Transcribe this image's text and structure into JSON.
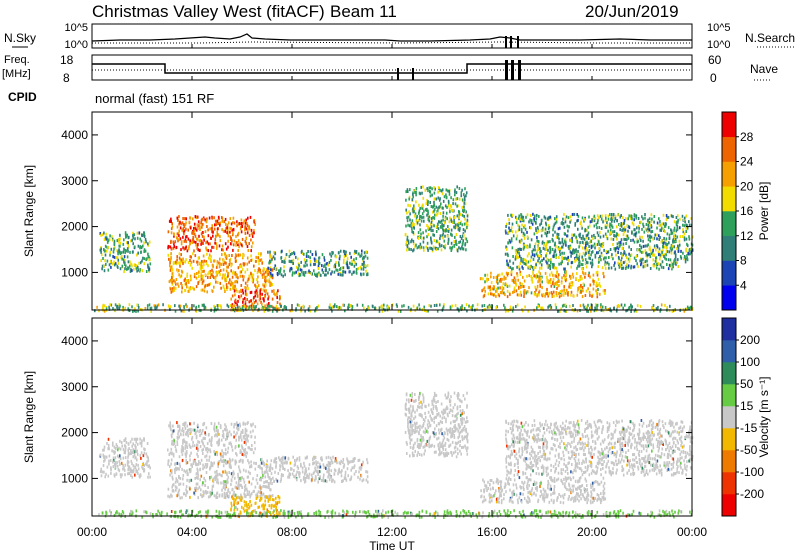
{
  "header": {
    "station": "Christmas Valley West (fitACF)",
    "beam": "Beam 11",
    "date": "20/Jun/2019"
  },
  "summary_panel": {
    "nsky_label": "N.Sky",
    "nsearch_label": "N.Search",
    "left_ticks": [
      "10^5",
      "10^0"
    ],
    "right_ticks": [
      "10^5",
      "10^0"
    ],
    "freq_label": "Freq.",
    "freq_unit": "[MHz]",
    "freq_ticks": [
      "18",
      "8"
    ],
    "nave_label": "Nave",
    "nave_ticks": [
      "60",
      "0"
    ],
    "cpid_label": "CPID",
    "cpid_value": "normal (fast) 151 RF"
  },
  "chart_data": [
    {
      "type": "heatmap",
      "panel": "power",
      "ylabel": "Slant Range [km]",
      "xlabel": "Time UT",
      "ylim": [
        180,
        4500
      ],
      "y_ticks": [
        "1000",
        "2000",
        "3000",
        "4000"
      ],
      "xlim": [
        "00:00",
        "24:00"
      ],
      "x_ticks": [
        "00:00",
        "04:00",
        "08:00",
        "12:00",
        "16:00",
        "20:00",
        "00:00"
      ],
      "colorbar": {
        "label": "Power [dB]",
        "ticks": [
          "4",
          "8",
          "12",
          "16",
          "20",
          "24",
          "28"
        ],
        "colors": [
          "#0000ee",
          "#1c44b4",
          "#2f7f78",
          "#2ea05c",
          "#f2dc00",
          "#f5a000",
          "#ee6400",
          "#ee0000"
        ]
      },
      "regions": [
        {
          "t0": 0.3,
          "t1": 2.3,
          "r0": 1050,
          "r1": 1900,
          "level": 13
        },
        {
          "t0": 3.0,
          "t1": 6.5,
          "r0": 1500,
          "r1": 2250,
          "level": 26
        },
        {
          "t0": 3.0,
          "t1": 7.2,
          "r0": 600,
          "r1": 1450,
          "level": 22
        },
        {
          "t0": 5.5,
          "t1": 7.5,
          "r0": 200,
          "r1": 650,
          "level": 27
        },
        {
          "t0": 7.0,
          "t1": 11.0,
          "r0": 950,
          "r1": 1500,
          "level": 12
        },
        {
          "t0": 12.5,
          "t1": 15.0,
          "r0": 1500,
          "r1": 2900,
          "level": 14
        },
        {
          "t0": 15.5,
          "t1": 20.5,
          "r0": 500,
          "r1": 1050,
          "level": 21
        },
        {
          "t0": 16.5,
          "t1": 24.0,
          "r0": 1100,
          "r1": 2300,
          "level": 13
        },
        {
          "t0": 0.0,
          "t1": 24.0,
          "r0": 180,
          "r1": 330,
          "level": 15
        }
      ]
    },
    {
      "type": "heatmap",
      "panel": "velocity",
      "ylabel": "Slant Range [km]",
      "xlabel": "Time UT",
      "ylim": [
        180,
        4500
      ],
      "y_ticks": [
        "1000",
        "2000",
        "3000",
        "4000"
      ],
      "xlim": [
        "00:00",
        "24:00"
      ],
      "x_ticks": [
        "00:00",
        "04:00",
        "08:00",
        "12:00",
        "16:00",
        "20:00",
        "00:00"
      ],
      "colorbar": {
        "label": "Velocity [m s⁻¹]",
        "ticks": [
          "200",
          "100",
          "50",
          "15",
          "-15",
          "-50",
          "-100",
          "-200"
        ],
        "colors": [
          "#1f2fa0",
          "#2e5fa8",
          "#2e8c5a",
          "#66cc44",
          "#c8c8c8",
          "#f2b800",
          "#ee7a00",
          "#ee3300",
          "#ee0000"
        ]
      },
      "regions": [
        {
          "t0": 0.3,
          "t1": 2.3,
          "r0": 1050,
          "r1": 1900,
          "level": 0
        },
        {
          "t0": 3.0,
          "t1": 6.5,
          "r0": 1500,
          "r1": 2250,
          "level": 0
        },
        {
          "t0": 3.0,
          "t1": 7.2,
          "r0": 600,
          "r1": 1450,
          "level": 0
        },
        {
          "t0": 5.5,
          "t1": 7.5,
          "r0": 200,
          "r1": 650,
          "level": -40
        },
        {
          "t0": 7.0,
          "t1": 11.0,
          "r0": 950,
          "r1": 1500,
          "level": 0
        },
        {
          "t0": 12.5,
          "t1": 15.0,
          "r0": 1500,
          "r1": 2900,
          "level": 0
        },
        {
          "t0": 15.5,
          "t1": 20.5,
          "r0": 500,
          "r1": 1050,
          "level": 0
        },
        {
          "t0": 16.5,
          "t1": 24.0,
          "r0": 1100,
          "r1": 2300,
          "level": 0
        },
        {
          "t0": 0.0,
          "t1": 24.0,
          "r0": 180,
          "r1": 330,
          "level": 25
        }
      ]
    }
  ]
}
